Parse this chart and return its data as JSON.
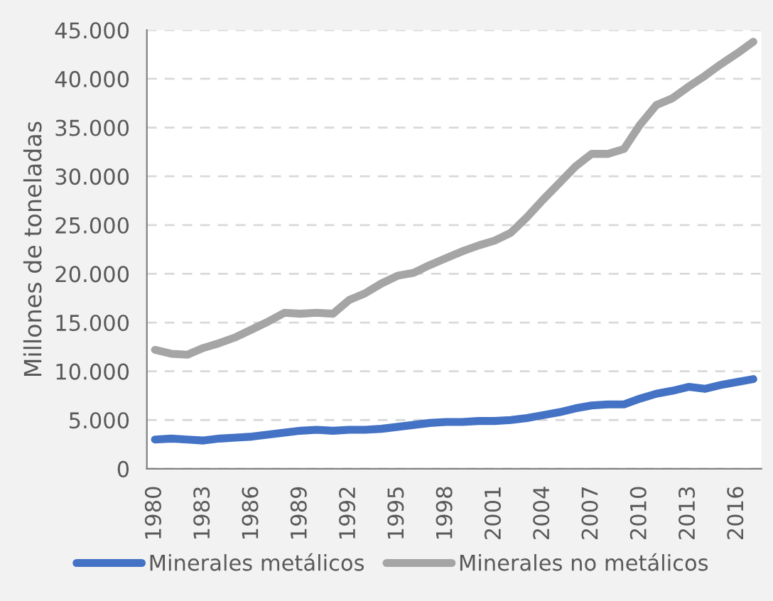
{
  "chart_data": {
    "type": "line",
    "ylabel": "Millones de toneladas",
    "categories": [
      "1980",
      null,
      null,
      "1983",
      null,
      null,
      "1986",
      null,
      null,
      "1989",
      null,
      null,
      "1992",
      null,
      null,
      "1995",
      null,
      null,
      "1998",
      null,
      null,
      "2001",
      null,
      null,
      "2004",
      null,
      null,
      "2007",
      null,
      null,
      "2010",
      null,
      null,
      "2013",
      null,
      null,
      "2016",
      null
    ],
    "series": [
      {
        "name": "Minerales metálicos",
        "color": "#4472c4",
        "values": [
          3000,
          3100,
          3000,
          2900,
          3100,
          3200,
          3300,
          3500,
          3700,
          3900,
          4000,
          3900,
          4000,
          4000,
          4100,
          4300,
          4500,
          4700,
          4800,
          4800,
          4900,
          4900,
          5000,
          5200,
          5500,
          5800,
          6200,
          6500,
          6600,
          6600,
          7200,
          7700,
          8000,
          8400,
          8200,
          8600,
          8900,
          9200
        ]
      },
      {
        "name": "Minerales no metálicos",
        "color": "#a5a5a5",
        "values": [
          12200,
          11800,
          11700,
          12400,
          12900,
          13500,
          14300,
          15100,
          16000,
          15900,
          16000,
          15900,
          17300,
          18000,
          19000,
          19800,
          20100,
          20900,
          21600,
          22300,
          22900,
          23400,
          24200,
          25800,
          27600,
          29300,
          31000,
          32300,
          32300,
          32800,
          35300,
          37300,
          38000,
          39200,
          40300,
          41500,
          42600,
          43800
        ]
      }
    ],
    "ylim": [
      0,
      45000
    ],
    "yticks": [
      0,
      {
        "value": 5000,
        "label": "5.000"
      },
      {
        "value": 10000,
        "label": "10.000"
      },
      {
        "value": 15000,
        "label": "15.000"
      },
      {
        "value": 20000,
        "label": "20.000"
      },
      {
        "value": 25000,
        "label": "25.000"
      },
      {
        "value": 30000,
        "label": "30.000"
      },
      {
        "value": 35000,
        "label": "35.000"
      },
      {
        "value": 40000,
        "label": "40.000"
      },
      {
        "value": 45000,
        "label": "45.000"
      }
    ],
    "grid": "y",
    "legend": "bottom",
    "marker": "none",
    "line_style": "solid"
  }
}
